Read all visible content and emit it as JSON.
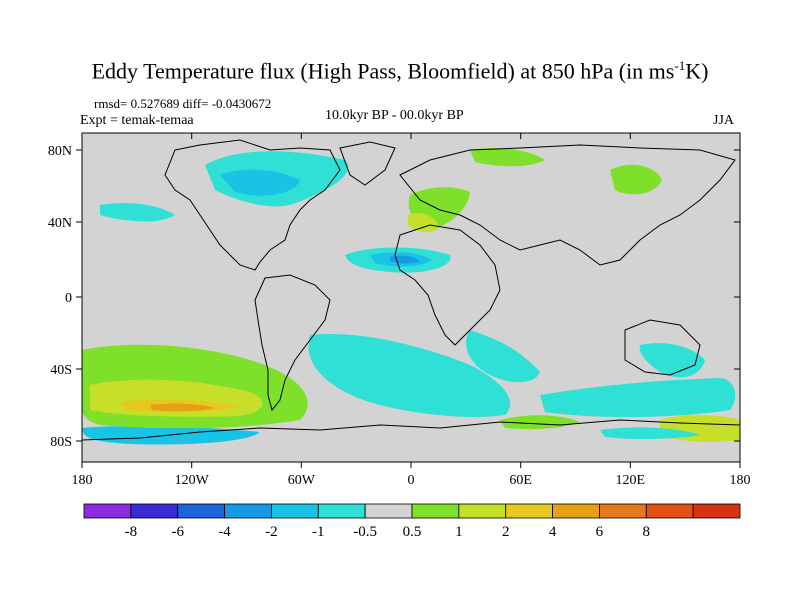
{
  "title": {
    "prefix": "Eddy Temperature flux (High Pass, Bloomfield) at 850 hPa (in ms",
    "superscript": "-1",
    "suffix": "K)"
  },
  "stats": "rmsd= 0.527689 diff= -0.0430672",
  "experiment": "Expt = temak-temaa",
  "period": "10.0kyr BP - 00.0kyr BP",
  "season": "JJA",
  "lat_labels": [
    "80N",
    "40N",
    "0",
    "40S",
    "80S"
  ],
  "lon_labels": [
    "180",
    "120W",
    "60W",
    "0",
    "60E",
    "120E",
    "180"
  ],
  "colorbar": {
    "colors": [
      "#8a2be2",
      "#3b2ad8",
      "#1c64e0",
      "#149be6",
      "#19c3e6",
      "#2ee0d6",
      "#d3d3d3",
      "#7fe02a",
      "#c6e02a",
      "#e6c81e",
      "#e6a014",
      "#e6781e",
      "#e65014",
      "#d83214"
    ],
    "labels": [
      "-8",
      "-6",
      "-4",
      "-2",
      "-1",
      "-0.5",
      "0.5",
      "1",
      "2",
      "4",
      "6",
      "8"
    ]
  }
}
